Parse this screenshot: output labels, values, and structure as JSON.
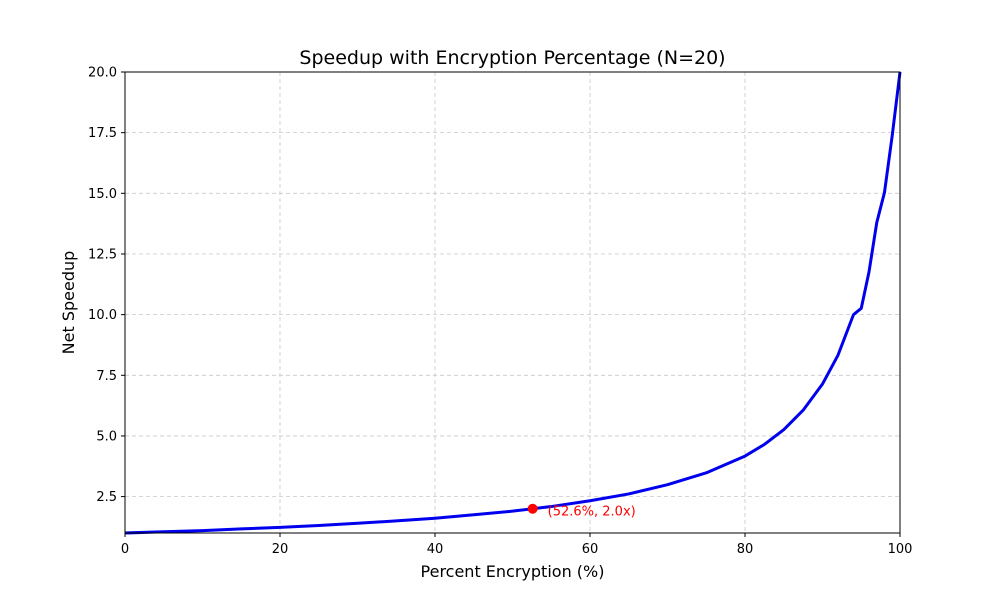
{
  "chart_data": {
    "type": "line",
    "title": "Speedup with Encryption Percentage (N=20)",
    "xlabel": "Percent Encryption (%)",
    "ylabel": "Net Speedup",
    "xlim": [
      0,
      100
    ],
    "ylim": [
      1,
      20
    ],
    "grid": true,
    "x_ticks": [
      0,
      20,
      40,
      60,
      80,
      100
    ],
    "x_tick_labels": [
      "0",
      "20",
      "40",
      "60",
      "80",
      "100"
    ],
    "y_ticks": [
      2.5,
      5.0,
      7.5,
      10.0,
      12.5,
      15.0,
      17.5,
      20.0
    ],
    "y_tick_labels": [
      "2.5",
      "5.0",
      "7.5",
      "10.0",
      "12.5",
      "15.0",
      "17.5",
      "20.0"
    ],
    "series": [
      {
        "color": "#0000ee",
        "x": [
          0,
          5,
          10,
          15,
          20,
          25,
          30,
          35,
          40,
          45,
          50,
          52.6,
          55,
          60,
          65,
          70,
          75,
          80,
          82.5,
          85,
          87.5,
          90,
          92,
          94,
          95,
          96,
          97,
          98,
          99,
          100
        ],
        "y": [
          1.0,
          1.05,
          1.1,
          1.17,
          1.23,
          1.31,
          1.4,
          1.5,
          1.61,
          1.75,
          1.9,
          2.0,
          2.09,
          2.33,
          2.61,
          2.99,
          3.48,
          4.17,
          4.65,
          5.26,
          6.06,
          7.14,
          8.33,
          10.0,
          10.26,
          11.76,
          13.79,
          15.04,
          17.39,
          20.0
        ]
      }
    ],
    "annotations": [
      {
        "x": 52.6,
        "y": 2.0,
        "text": "(52.6%, 2.0x)",
        "color": "#ff0000"
      }
    ]
  }
}
